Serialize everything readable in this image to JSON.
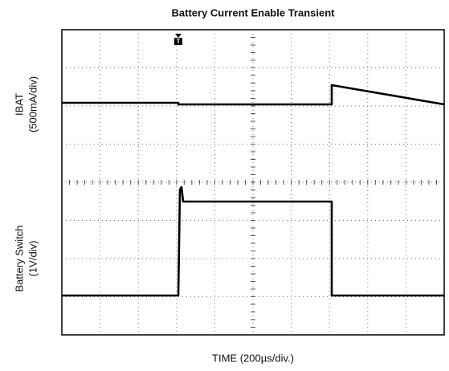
{
  "title": "Battery Current Enable Transient",
  "y_labels": [
    [
      "IBAT",
      "(500mA/div)"
    ],
    [
      "Battery Switch",
      "(1V/div)"
    ]
  ],
  "x_label": "TIME (200µs/div.)"
}
